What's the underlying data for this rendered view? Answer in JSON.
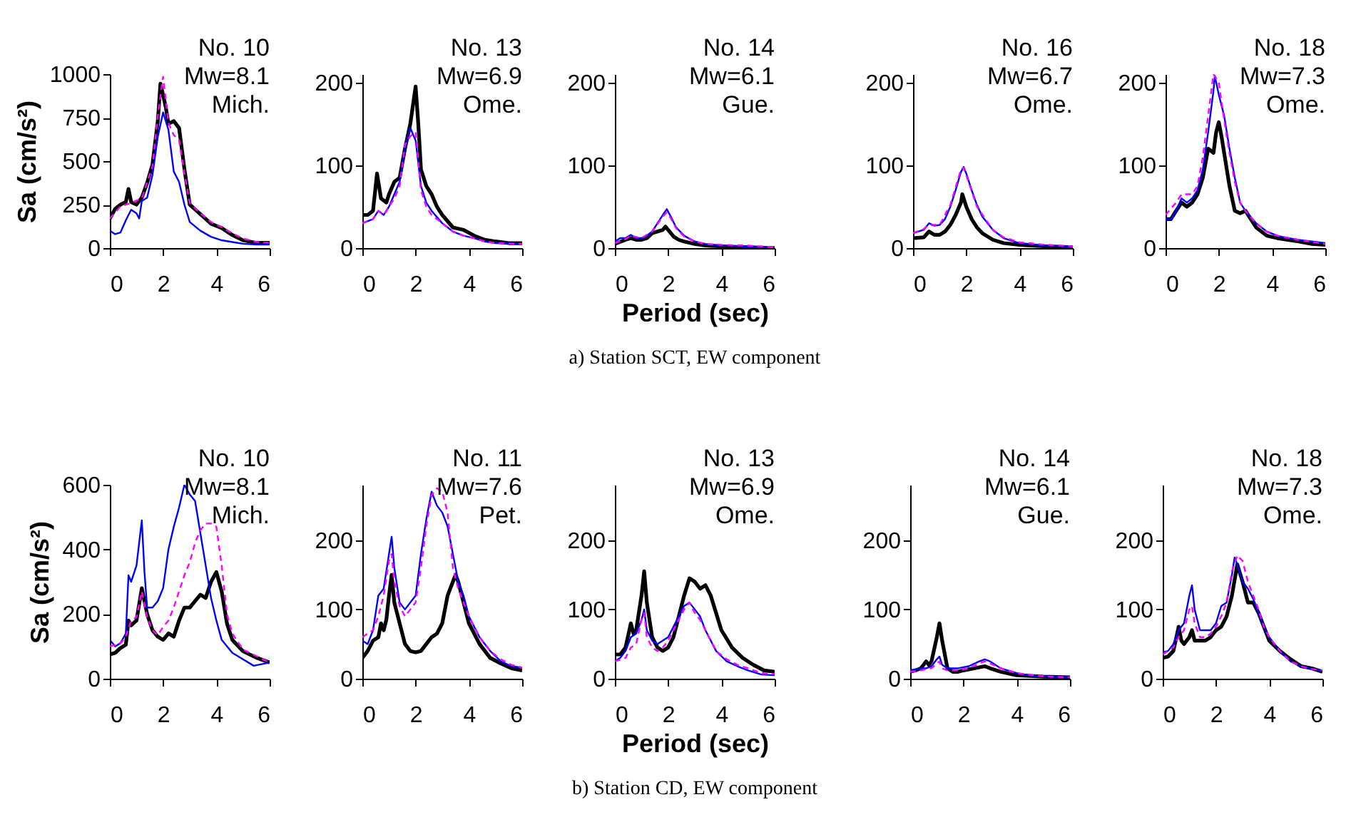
{
  "chart_data": [
    {
      "type": "line",
      "title": "No. 10\nMw=8.1\nMich.",
      "ylabel": "Sa (cm/s²)",
      "xlim": [
        0,
        6
      ],
      "xticks": [
        0,
        2,
        4,
        6
      ],
      "ylim": [
        0,
        1000
      ],
      "yticks": [
        0,
        250,
        500,
        750,
        1000
      ],
      "series": [
        {
          "color": "#000000",
          "x": [
            0,
            0.2,
            0.4,
            0.6,
            0.7,
            0.8,
            1.0,
            1.2,
            1.4,
            1.6,
            1.8,
            1.9,
            2.0,
            2.1,
            2.2,
            2.4,
            2.6,
            2.8,
            3.0,
            3.4,
            3.8,
            4.2,
            4.6,
            5.0,
            5.5,
            6.0
          ],
          "values": [
            170,
            225,
            250,
            265,
            340,
            265,
            250,
            290,
            375,
            480,
            730,
            945,
            880,
            810,
            715,
            730,
            690,
            455,
            250,
            195,
            140,
            115,
            75,
            45,
            30,
            30
          ]
        },
        {
          "color": "#0000ff",
          "x": [
            0,
            0.2,
            0.4,
            0.6,
            0.8,
            1.0,
            1.1,
            1.2,
            1.4,
            1.6,
            1.8,
            2.0,
            2.2,
            2.4,
            2.6,
            2.8,
            3.0,
            3.4,
            3.8,
            4.2,
            4.6,
            5.0,
            5.5,
            6.0
          ],
          "values": [
            100,
            80,
            90,
            160,
            220,
            200,
            170,
            270,
            290,
            420,
            640,
            780,
            680,
            440,
            380,
            250,
            150,
            100,
            65,
            45,
            35,
            25,
            20,
            20
          ]
        },
        {
          "color": "#ff00ff",
          "line_style": "dashed",
          "x": [
            0,
            0.4,
            0.8,
            1.2,
            1.6,
            1.8,
            2.0,
            2.2,
            2.4,
            2.6,
            2.8,
            3.0,
            3.4,
            3.8,
            4.2,
            4.6,
            5.0,
            5.5,
            6.0
          ],
          "values": [
            170,
            240,
            260,
            285,
            470,
            760,
            985,
            720,
            650,
            620,
            430,
            260,
            200,
            150,
            120,
            85,
            55,
            35,
            30
          ]
        }
      ]
    },
    {
      "type": "line",
      "title": "No. 13\nMw=6.9\nOme.",
      "xlim": [
        0,
        6
      ],
      "xticks": [
        0,
        2,
        4,
        6
      ],
      "ylim": [
        0,
        210
      ],
      "yticks": [
        0,
        100,
        200
      ],
      "series": [
        {
          "color": "#000000",
          "x": [
            0,
            0.2,
            0.4,
            0.55,
            0.7,
            0.9,
            1.0,
            1.2,
            1.4,
            1.6,
            1.8,
            2.0,
            2.1,
            2.2,
            2.4,
            2.6,
            2.8,
            3.0,
            3.4,
            3.8,
            4.2,
            4.6,
            5.0,
            5.5,
            6.0
          ],
          "values": [
            40,
            40,
            45,
            90,
            60,
            55,
            65,
            80,
            85,
            120,
            150,
            195,
            150,
            95,
            75,
            65,
            50,
            40,
            25,
            22,
            15,
            10,
            8,
            6,
            6
          ]
        },
        {
          "color": "#0000ff",
          "x": [
            0,
            0.4,
            0.6,
            0.8,
            1.0,
            1.2,
            1.4,
            1.6,
            1.8,
            2.0,
            2.2,
            2.4,
            2.6,
            3.0,
            3.4,
            3.8,
            4.2,
            4.6,
            5.0,
            6.0
          ],
          "values": [
            30,
            35,
            45,
            40,
            50,
            65,
            80,
            120,
            145,
            130,
            75,
            55,
            45,
            30,
            20,
            15,
            12,
            8,
            6,
            5
          ]
        },
        {
          "color": "#ff00ff",
          "line_style": "dashed",
          "x": [
            0,
            0.4,
            0.6,
            0.8,
            1.0,
            1.2,
            1.4,
            1.6,
            1.8,
            2.0,
            2.2,
            2.4,
            2.6,
            3.0,
            3.4,
            3.8,
            4.2,
            4.6,
            5.0,
            6.0
          ],
          "values": [
            30,
            35,
            45,
            40,
            50,
            60,
            75,
            125,
            135,
            140,
            70,
            50,
            40,
            30,
            20,
            15,
            12,
            8,
            6,
            5
          ]
        }
      ]
    },
    {
      "type": "line",
      "title": "No. 14\nMw=6.1\nGue.",
      "xlabel": "Period (sec)",
      "annotations": [
        "a) Station SCT, EW component"
      ],
      "xlim": [
        0,
        6
      ],
      "xticks": [
        0,
        2,
        4,
        6
      ],
      "ylim": [
        0,
        210
      ],
      "yticks": [
        0,
        100,
        200
      ],
      "series": [
        {
          "color": "#000000",
          "x": [
            0,
            0.4,
            0.6,
            0.8,
            1.0,
            1.2,
            1.4,
            1.6,
            1.8,
            1.9,
            2.0,
            2.2,
            2.4,
            2.6,
            3.0,
            3.4,
            4.0,
            5.0,
            6.0
          ],
          "values": [
            5,
            10,
            12,
            10,
            10,
            12,
            18,
            20,
            22,
            26,
            22,
            14,
            10,
            8,
            5,
            3,
            2,
            1,
            0
          ]
        },
        {
          "color": "#0000ff",
          "x": [
            0,
            0.2,
            0.4,
            0.6,
            0.8,
            1.0,
            1.2,
            1.4,
            1.6,
            1.8,
            1.95,
            2.1,
            2.3,
            2.6,
            3.0,
            3.4,
            4.0,
            5.0,
            6.0
          ],
          "values": [
            8,
            12,
            12,
            16,
            12,
            12,
            15,
            20,
            30,
            40,
            47,
            38,
            25,
            15,
            8,
            5,
            3,
            2,
            1
          ]
        },
        {
          "color": "#ff00ff",
          "line_style": "dashed",
          "x": [
            0,
            0.4,
            0.6,
            1.0,
            1.4,
            1.8,
            1.95,
            2.1,
            2.3,
            2.6,
            3.0,
            3.4,
            4.0,
            5.0,
            6.0
          ],
          "values": [
            6,
            11,
            15,
            12,
            20,
            38,
            43,
            36,
            24,
            14,
            8,
            5,
            4,
            3,
            1
          ]
        }
      ]
    },
    {
      "type": "line",
      "title": "No. 16\nMw=6.7\nOme.",
      "xlim": [
        0,
        6
      ],
      "xticks": [
        0,
        2,
        4,
        6
      ],
      "ylim": [
        0,
        210
      ],
      "yticks": [
        0,
        100,
        200
      ],
      "series": [
        {
          "color": "#000000",
          "x": [
            0,
            0.4,
            0.6,
            0.8,
            1.0,
            1.2,
            1.4,
            1.6,
            1.8,
            1.85,
            2.0,
            2.2,
            2.4,
            2.6,
            3.0,
            3.4,
            4.0,
            5.0,
            6.0
          ],
          "values": [
            12,
            13,
            20,
            16,
            16,
            20,
            28,
            40,
            55,
            65,
            50,
            35,
            25,
            18,
            10,
            6,
            4,
            2,
            1
          ]
        },
        {
          "color": "#0000ff",
          "x": [
            0,
            0.4,
            0.6,
            0.8,
            1.0,
            1.2,
            1.4,
            1.6,
            1.8,
            1.9,
            2.0,
            2.2,
            2.4,
            2.6,
            3.0,
            3.4,
            4.0,
            5.0,
            6.0
          ],
          "values": [
            18,
            22,
            30,
            27,
            28,
            35,
            50,
            70,
            92,
            98,
            90,
            70,
            52,
            38,
            22,
            12,
            6,
            3,
            2
          ]
        },
        {
          "color": "#ff00ff",
          "line_style": "dashed",
          "x": [
            0,
            0.4,
            0.6,
            1.0,
            1.4,
            1.8,
            1.9,
            2.0,
            2.4,
            3.0,
            3.4,
            4.0,
            5.0,
            6.0
          ],
          "values": [
            18,
            23,
            28,
            28,
            52,
            95,
            97,
            88,
            50,
            22,
            13,
            7,
            4,
            2
          ]
        }
      ]
    },
    {
      "type": "line",
      "title": "No. 18\nMw=7.3\nOme.",
      "xlim": [
        0,
        6
      ],
      "xticks": [
        0,
        2,
        4,
        6
      ],
      "ylim": [
        0,
        210
      ],
      "yticks": [
        0,
        100,
        200
      ],
      "series": [
        {
          "color": "#000000",
          "x": [
            0,
            0.2,
            0.4,
            0.6,
            0.8,
            1.0,
            1.2,
            1.4,
            1.6,
            1.8,
            1.9,
            2.0,
            2.1,
            2.2,
            2.4,
            2.6,
            2.8,
            3.0,
            3.2,
            3.4,
            3.8,
            4.2,
            4.6,
            5.0,
            5.5,
            6.0
          ],
          "values": [
            35,
            35,
            45,
            55,
            50,
            55,
            65,
            85,
            120,
            115,
            140,
            152,
            135,
            115,
            75,
            45,
            42,
            45,
            35,
            25,
            15,
            12,
            10,
            8,
            5,
            4
          ]
        },
        {
          "color": "#0000ff",
          "x": [
            0,
            0.2,
            0.4,
            0.6,
            0.8,
            1.0,
            1.2,
            1.4,
            1.6,
            1.8,
            1.85,
            2.0,
            2.2,
            2.4,
            2.6,
            2.8,
            3.0,
            3.4,
            3.8,
            4.2,
            4.6,
            5.0,
            5.5,
            6.0
          ],
          "values": [
            35,
            35,
            45,
            60,
            55,
            60,
            70,
            95,
            140,
            190,
            208,
            185,
            160,
            120,
            85,
            55,
            45,
            30,
            20,
            15,
            12,
            10,
            8,
            6
          ]
        },
        {
          "color": "#ff00ff",
          "line_style": "dashed",
          "x": [
            0,
            0.4,
            0.6,
            1.0,
            1.2,
            1.4,
            1.6,
            1.8,
            2.0,
            2.2,
            2.4,
            2.6,
            2.8,
            3.0,
            3.4,
            3.8,
            4.2,
            5.0,
            6.0
          ],
          "values": [
            40,
            55,
            65,
            65,
            75,
            110,
            160,
            210,
            200,
            155,
            115,
            80,
            55,
            45,
            30,
            20,
            15,
            10,
            5
          ]
        }
      ]
    },
    {
      "type": "line",
      "title": "No. 10\nMw=8.1\nMich.",
      "ylabel": "Sa (cm/s²)",
      "xlim": [
        0,
        6
      ],
      "xticks": [
        0,
        2,
        4,
        6
      ],
      "ylim": [
        0,
        600
      ],
      "yticks": [
        0,
        200,
        400,
        600
      ],
      "series": [
        {
          "color": "#000000",
          "x": [
            0,
            0.2,
            0.4,
            0.6,
            0.7,
            0.8,
            1.0,
            1.2,
            1.4,
            1.6,
            1.8,
            2.0,
            2.2,
            2.4,
            2.6,
            2.8,
            3.0,
            3.2,
            3.4,
            3.6,
            3.8,
            4.0,
            4.2,
            4.4,
            4.6,
            5.0,
            5.5,
            6.0
          ],
          "values": [
            75,
            80,
            95,
            105,
            180,
            165,
            180,
            280,
            200,
            150,
            130,
            120,
            140,
            130,
            180,
            220,
            220,
            240,
            260,
            250,
            300,
            330,
            270,
            170,
            120,
            85,
            65,
            50
          ]
        },
        {
          "color": "#0000ff",
          "x": [
            0,
            0.2,
            0.4,
            0.6,
            0.7,
            0.8,
            1.0,
            1.2,
            1.3,
            1.4,
            1.6,
            1.8,
            2.0,
            2.2,
            2.4,
            2.6,
            2.8,
            3.0,
            3.2,
            3.4,
            3.6,
            3.8,
            4.0,
            4.2,
            4.6,
            5.0,
            5.4,
            6.0
          ],
          "values": [
            120,
            100,
            110,
            140,
            320,
            300,
            350,
            490,
            330,
            220,
            220,
            240,
            280,
            400,
            470,
            530,
            600,
            570,
            550,
            450,
            350,
            250,
            180,
            120,
            80,
            60,
            40,
            50
          ]
        },
        {
          "color": "#ff00ff",
          "line_style": "dashed",
          "x": [
            0,
            0.4,
            0.6,
            0.8,
            1.0,
            1.2,
            1.4,
            1.6,
            1.8,
            2.0,
            2.2,
            2.4,
            2.6,
            2.8,
            3.0,
            3.2,
            3.4,
            3.6,
            3.8,
            4.0,
            4.2,
            4.4,
            4.6,
            5.0,
            5.5,
            6.0
          ],
          "values": [
            100,
            110,
            130,
            180,
            190,
            270,
            190,
            150,
            135,
            160,
            180,
            220,
            270,
            320,
            360,
            420,
            460,
            480,
            480,
            470,
            350,
            200,
            140,
            90,
            70,
            50
          ]
        }
      ]
    },
    {
      "type": "line",
      "title": "No. 11\nMw=7.6\nPet.",
      "xlim": [
        0,
        6
      ],
      "xticks": [
        0,
        2,
        4,
        6
      ],
      "ylim": [
        0,
        280
      ],
      "yticks": [
        0,
        100,
        200
      ],
      "series": [
        {
          "color": "#000000",
          "x": [
            0,
            0.2,
            0.4,
            0.6,
            0.7,
            0.8,
            0.9,
            1.0,
            1.1,
            1.2,
            1.4,
            1.6,
            1.8,
            2.0,
            2.2,
            2.4,
            2.6,
            2.8,
            3.0,
            3.2,
            3.4,
            3.5,
            3.6,
            3.8,
            4.0,
            4.4,
            4.8,
            5.2,
            5.6,
            6.0
          ],
          "values": [
            30,
            40,
            55,
            60,
            80,
            70,
            85,
            120,
            150,
            110,
            80,
            50,
            40,
            38,
            40,
            50,
            60,
            65,
            80,
            120,
            140,
            150,
            140,
            110,
            80,
            50,
            30,
            22,
            15,
            12
          ]
        },
        {
          "color": "#0000ff",
          "x": [
            0,
            0.2,
            0.4,
            0.6,
            0.8,
            1.0,
            1.1,
            1.2,
            1.4,
            1.6,
            1.8,
            2.0,
            2.2,
            2.4,
            2.6,
            2.8,
            3.0,
            3.2,
            3.4,
            3.6,
            3.8,
            4.0,
            4.4,
            4.8,
            5.2,
            5.6,
            6.0
          ],
          "values": [
            55,
            50,
            70,
            120,
            130,
            180,
            205,
            160,
            110,
            100,
            110,
            120,
            180,
            230,
            270,
            250,
            240,
            220,
            180,
            140,
            120,
            90,
            60,
            40,
            25,
            18,
            16
          ]
        },
        {
          "color": "#ff00ff",
          "line_style": "dashed",
          "x": [
            0,
            0.4,
            0.6,
            0.8,
            1.0,
            1.1,
            1.2,
            1.4,
            1.6,
            1.8,
            2.0,
            2.2,
            2.4,
            2.6,
            2.8,
            3.0,
            3.2,
            3.4,
            3.6,
            3.8,
            4.0,
            4.4,
            4.8,
            5.2,
            5.6,
            6.0
          ],
          "values": [
            60,
            70,
            90,
            120,
            170,
            180,
            140,
            105,
            90,
            100,
            110,
            160,
            220,
            265,
            275,
            270,
            240,
            160,
            130,
            110,
            90,
            60,
            40,
            28,
            20,
            16
          ]
        }
      ]
    },
    {
      "type": "line",
      "title": "No. 13\nMw=6.9\nOme.",
      "xlabel": "Period (sec)",
      "annotations": [
        "b) Station CD, EW component"
      ],
      "xlim": [
        0,
        6
      ],
      "xticks": [
        0,
        2,
        4,
        6
      ],
      "ylim": [
        0,
        280
      ],
      "yticks": [
        0,
        100,
        200
      ],
      "series": [
        {
          "color": "#000000",
          "x": [
            0,
            0.2,
            0.4,
            0.6,
            0.7,
            0.8,
            1.0,
            1.1,
            1.2,
            1.4,
            1.6,
            1.8,
            2.0,
            2.2,
            2.4,
            2.6,
            2.8,
            3.0,
            3.2,
            3.4,
            3.6,
            3.8,
            4.0,
            4.4,
            4.8,
            5.2,
            5.6,
            6.0
          ],
          "values": [
            35,
            35,
            45,
            80,
            65,
            70,
            120,
            155,
            110,
            60,
            45,
            40,
            45,
            60,
            90,
            120,
            145,
            140,
            130,
            135,
            120,
            95,
            70,
            45,
            30,
            20,
            12,
            10
          ]
        },
        {
          "color": "#0000ff",
          "x": [
            0,
            0.2,
            0.4,
            0.6,
            0.8,
            1.0,
            1.1,
            1.2,
            1.4,
            1.6,
            1.8,
            2.0,
            2.2,
            2.4,
            2.6,
            2.8,
            3.0,
            3.2,
            3.4,
            3.6,
            3.8,
            4.2,
            4.6,
            5.0,
            5.5,
            6.0
          ],
          "values": [
            25,
            30,
            40,
            60,
            65,
            85,
            100,
            70,
            55,
            50,
            55,
            60,
            75,
            90,
            105,
            110,
            100,
            90,
            70,
            55,
            40,
            25,
            18,
            12,
            6,
            5
          ]
        },
        {
          "color": "#ff00ff",
          "line_style": "dashed",
          "x": [
            0,
            0.4,
            0.6,
            0.8,
            1.0,
            1.1,
            1.2,
            1.4,
            1.6,
            1.8,
            2.0,
            2.4,
            2.6,
            2.8,
            3.0,
            3.2,
            3.4,
            3.6,
            3.8,
            4.2,
            4.6,
            5.0,
            5.5,
            6.0
          ],
          "values": [
            25,
            30,
            45,
            50,
            85,
            95,
            60,
            45,
            40,
            45,
            55,
            85,
            100,
            110,
            95,
            85,
            70,
            55,
            40,
            28,
            20,
            15,
            8,
            7
          ]
        }
      ]
    },
    {
      "type": "line",
      "title": "No. 14\nMw=6.1\nGue.",
      "xlim": [
        0,
        6
      ],
      "xticks": [
        0,
        2,
        4,
        6
      ],
      "ylim": [
        0,
        280
      ],
      "yticks": [
        0,
        100,
        200
      ],
      "series": [
        {
          "color": "#000000",
          "x": [
            0,
            0.2,
            0.4,
            0.6,
            0.7,
            0.8,
            1.0,
            1.1,
            1.2,
            1.4,
            1.6,
            1.8,
            2.0,
            2.4,
            2.8,
            3.0,
            3.4,
            4.0,
            5.0,
            6.0
          ],
          "values": [
            10,
            12,
            15,
            25,
            20,
            25,
            60,
            80,
            55,
            15,
            10,
            10,
            12,
            15,
            18,
            15,
            10,
            5,
            3,
            2
          ]
        },
        {
          "color": "#0000ff",
          "x": [
            0,
            0.4,
            0.6,
            0.8,
            1.0,
            1.1,
            1.2,
            1.4,
            1.8,
            2.2,
            2.6,
            2.8,
            3.0,
            3.4,
            4.0,
            4.6,
            5.2,
            6.0
          ],
          "values": [
            12,
            15,
            15,
            18,
            28,
            32,
            20,
            15,
            15,
            18,
            25,
            28,
            25,
            15,
            8,
            4,
            3,
            2
          ]
        },
        {
          "color": "#ff00ff",
          "line_style": "dashed",
          "x": [
            0,
            0.4,
            0.6,
            0.8,
            1.0,
            1.1,
            1.2,
            1.4,
            1.8,
            2.2,
            2.6,
            2.8,
            3.0,
            3.4,
            4.0,
            4.6,
            5.2,
            6.0
          ],
          "values": [
            10,
            12,
            14,
            15,
            22,
            25,
            15,
            12,
            12,
            15,
            22,
            25,
            22,
            15,
            8,
            5,
            3,
            2
          ]
        }
      ]
    },
    {
      "type": "line",
      "title": "No. 18\nMw=7.3\nOme.",
      "xlim": [
        0,
        6
      ],
      "xticks": [
        0,
        2,
        4,
        6
      ],
      "ylim": [
        0,
        280
      ],
      "yticks": [
        0,
        100,
        200
      ],
      "series": [
        {
          "color": "#000000",
          "x": [
            0,
            0.2,
            0.4,
            0.6,
            0.7,
            0.8,
            1.0,
            1.1,
            1.2,
            1.4,
            1.6,
            1.8,
            2.0,
            2.2,
            2.4,
            2.6,
            2.8,
            3.0,
            3.2,
            3.4,
            3.6,
            3.8,
            4.0,
            4.4,
            4.8,
            5.2,
            5.6,
            6.0
          ],
          "values": [
            30,
            32,
            40,
            75,
            55,
            50,
            60,
            70,
            55,
            55,
            55,
            60,
            70,
            75,
            90,
            120,
            165,
            140,
            110,
            110,
            95,
            75,
            55,
            40,
            28,
            18,
            15,
            10
          ]
        },
        {
          "color": "#0000ff",
          "x": [
            0,
            0.2,
            0.4,
            0.6,
            0.8,
            1.0,
            1.1,
            1.2,
            1.4,
            1.6,
            1.8,
            2.0,
            2.2,
            2.4,
            2.6,
            2.7,
            2.8,
            3.0,
            3.2,
            3.4,
            3.6,
            3.8,
            4.0,
            4.4,
            4.8,
            5.2,
            5.6,
            6.0
          ],
          "values": [
            38,
            40,
            50,
            70,
            80,
            120,
            135,
            100,
            70,
            70,
            70,
            80,
            105,
            110,
            150,
            175,
            165,
            140,
            130,
            115,
            95,
            75,
            60,
            40,
            25,
            18,
            14,
            12
          ]
        },
        {
          "color": "#ff00ff",
          "line_style": "dashed",
          "x": [
            0,
            0.4,
            0.6,
            0.8,
            1.0,
            1.1,
            1.2,
            1.4,
            1.6,
            1.8,
            2.0,
            2.2,
            2.4,
            2.6,
            2.8,
            3.0,
            3.2,
            3.4,
            3.6,
            3.8,
            4.0,
            4.4,
            4.8,
            5.2,
            5.6,
            6.0
          ],
          "values": [
            35,
            45,
            60,
            70,
            100,
            105,
            80,
            60,
            60,
            65,
            75,
            90,
            110,
            155,
            178,
            170,
            140,
            120,
            100,
            75,
            60,
            40,
            25,
            18,
            14,
            12
          ]
        }
      ]
    }
  ]
}
